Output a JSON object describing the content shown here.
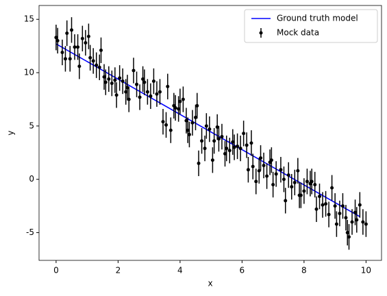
{
  "chart_data": {
    "type": "errorbar",
    "xlabel": "x",
    "ylabel": "y",
    "xlim": [
      -0.55,
      10.5
    ],
    "ylim": [
      -7.6,
      16.3
    ],
    "xticks": [
      0,
      2,
      4,
      6,
      8,
      10
    ],
    "yticks": [
      -5,
      0,
      5,
      10,
      15
    ],
    "legend": "upper right",
    "series": [
      {
        "name": "Ground truth model",
        "type": "line",
        "color": "#0000ff",
        "x": [
          0,
          9.8
        ],
        "values": [
          12.7,
          -3.5
        ]
      },
      {
        "name": "Mock data",
        "type": "errorbar",
        "color": "#000000",
        "yerr": 1.2,
        "x": [
          0.0,
          0.05,
          0.2,
          0.3,
          0.35,
          0.45,
          0.5,
          0.6,
          0.7,
          0.75,
          0.85,
          0.95,
          1.05,
          1.1,
          1.2,
          1.3,
          1.4,
          1.45,
          1.55,
          1.6,
          1.7,
          1.8,
          1.9,
          1.95,
          2.05,
          2.15,
          2.25,
          2.3,
          2.35,
          2.5,
          2.6,
          2.7,
          2.8,
          2.85,
          2.95,
          3.05,
          3.15,
          3.25,
          3.35,
          3.45,
          3.55,
          3.6,
          3.7,
          3.8,
          3.85,
          3.95,
          4.0,
          4.1,
          4.2,
          4.25,
          4.3,
          4.4,
          4.5,
          4.55,
          4.6,
          4.7,
          4.8,
          4.85,
          4.95,
          5.05,
          5.1,
          5.2,
          5.25,
          5.35,
          5.45,
          5.5,
          5.6,
          5.7,
          5.75,
          5.85,
          5.95,
          6.05,
          6.15,
          6.2,
          6.3,
          6.35,
          6.45,
          6.55,
          6.6,
          6.7,
          6.8,
          6.9,
          6.95,
          7.0,
          7.1,
          7.25,
          7.35,
          7.4,
          7.5,
          7.6,
          7.7,
          7.8,
          7.85,
          7.9,
          8.0,
          8.1,
          8.2,
          8.25,
          8.35,
          8.4,
          8.5,
          8.6,
          8.7,
          8.8,
          8.9,
          9.0,
          9.05,
          9.15,
          9.25,
          9.35,
          9.4,
          9.45,
          9.55,
          9.65,
          9.7,
          9.8,
          9.9,
          10.0
        ],
        "values": [
          13.3,
          13.0,
          11.9,
          11.3,
          13.7,
          11.3,
          14.0,
          12.4,
          12.4,
          10.6,
          13.2,
          12.8,
          13.4,
          11.4,
          11.1,
          10.7,
          10.5,
          12.1,
          9.6,
          9.1,
          9.4,
          9.0,
          9.3,
          7.9,
          9.5,
          9.2,
          8.2,
          8.6,
          7.5,
          10.2,
          8.9,
          7.7,
          9.4,
          9.1,
          8.2,
          7.8,
          9.2,
          8.0,
          8.2,
          5.4,
          5.1,
          8.7,
          4.6,
          6.9,
          6.7,
          6.6,
          7.3,
          7.5,
          5.5,
          4.6,
          4.2,
          5.3,
          5.8,
          6.9,
          1.5,
          3.6,
          2.9,
          5.0,
          4.7,
          1.8,
          3.6,
          4.9,
          3.8,
          4.0,
          2.4,
          2.9,
          2.7,
          3.5,
          3.0,
          3.1,
          2.9,
          4.3,
          3.2,
          0.9,
          3.4,
          1.2,
          -0.2,
          0.8,
          2.0,
          1.3,
          0.3,
          1.6,
          1.8,
          -0.5,
          0.5,
          0.9,
          0.0,
          -2.0,
          0.4,
          -0.7,
          -0.3,
          0.8,
          -1.5,
          -1.5,
          -1.1,
          -0.2,
          -0.4,
          -0.2,
          -0.5,
          -2.8,
          -1.6,
          -2.4,
          -2.3,
          -3.3,
          -0.8,
          -2.5,
          -4.2,
          -3.2,
          -2.5,
          -3.6,
          -5.0,
          -5.4,
          -4.0,
          -3.1,
          -3.8,
          -2.4,
          -4.0,
          -4.2
        ]
      }
    ]
  }
}
